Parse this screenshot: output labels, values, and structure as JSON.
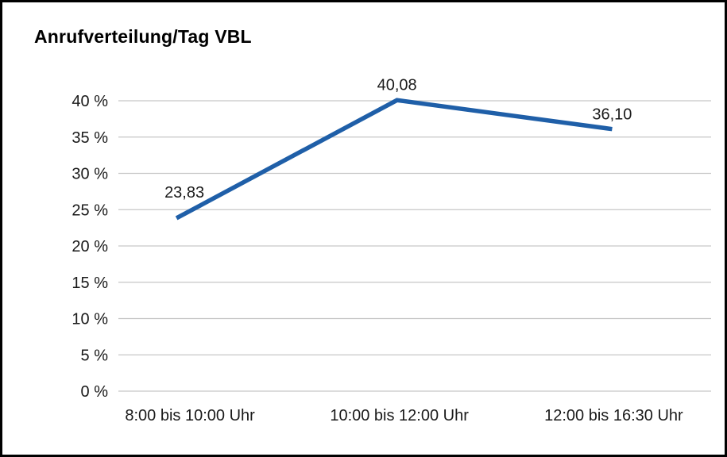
{
  "chart_data": {
    "type": "line",
    "title": "Anrufverteilung/Tag VBL",
    "categories": [
      "8:00 bis 10:00 Uhr",
      "10:00 bis 12:00 Uhr",
      "12:00 bis 16:30 Uhr"
    ],
    "values": [
      23.83,
      40.08,
      36.1
    ],
    "point_labels": [
      "23,83",
      "40,08",
      "36,10"
    ],
    "xlabel": "",
    "ylabel": "",
    "ylim": [
      0,
      40
    ],
    "ytick_step": 5,
    "yticks": [
      {
        "v": 0,
        "label": "0 %"
      },
      {
        "v": 5,
        "label": "5 %"
      },
      {
        "v": 10,
        "label": "10 %"
      },
      {
        "v": 15,
        "label": "15 %"
      },
      {
        "v": 20,
        "label": "20 %"
      },
      {
        "v": 25,
        "label": "25 %"
      },
      {
        "v": 30,
        "label": "30 %"
      },
      {
        "v": 35,
        "label": "35 %"
      },
      {
        "v": 40,
        "label": "40 %"
      }
    ],
    "grid": true,
    "legend_position": "none",
    "line_color": "#1f5fa8",
    "label_color": "#1a1a1a",
    "grid_color": "#c6c6c6",
    "background": "#ffffff"
  }
}
